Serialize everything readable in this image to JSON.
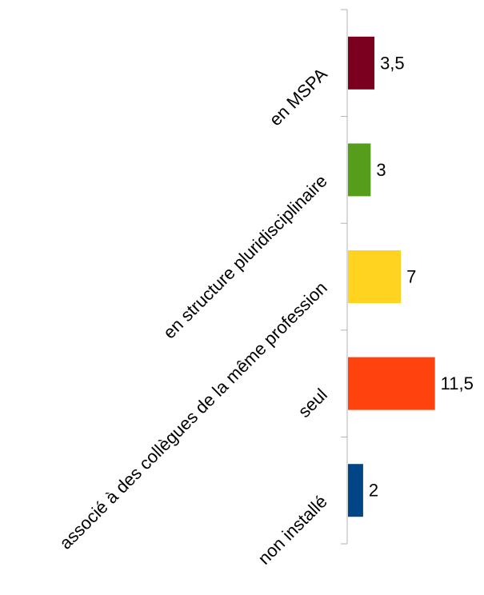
{
  "chart_data": {
    "type": "bar",
    "orientation": "horizontal",
    "categories": [
      "en MSPA",
      "en structure pluridisciplinaire",
      "associé à des collègues de la même profession",
      "seul",
      "non installé"
    ],
    "values": [
      3.5,
      3,
      7,
      11.5,
      2
    ],
    "value_labels": [
      "3,5",
      "3",
      "7",
      "11,5",
      "2"
    ],
    "colors": [
      "#7b0020",
      "#579d1c",
      "#ffd320",
      "#ff420e",
      "#004586"
    ],
    "xlim": [
      0,
      12
    ],
    "title": "",
    "xlabel": "",
    "ylabel": "",
    "grid": false,
    "legend": "none"
  }
}
